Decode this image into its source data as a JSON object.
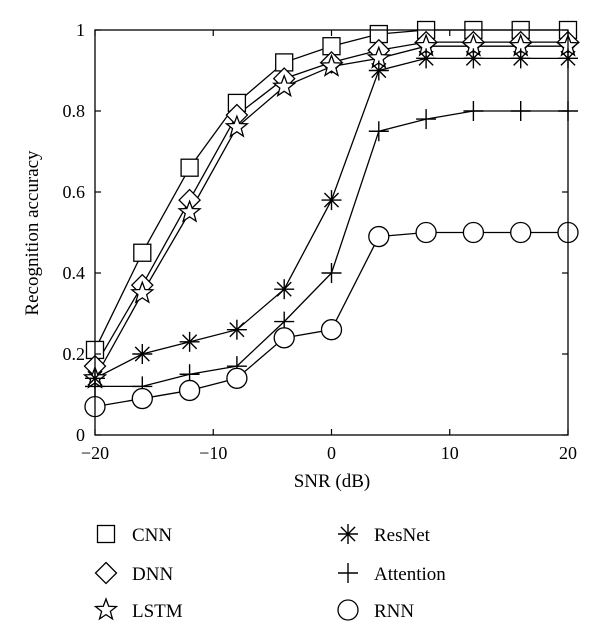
{
  "chart_data": {
    "type": "line",
    "title": "",
    "xlabel": "SNR (dB)",
    "ylabel": "Recognition accuracy",
    "xlim": [
      -20,
      20
    ],
    "ylim": [
      0,
      1
    ],
    "x_ticks": [
      -20,
      -10,
      0,
      10,
      20
    ],
    "x_tick_labels": [
      "−20",
      "−10",
      "0",
      "10",
      "20"
    ],
    "y_ticks": [
      0,
      0.2,
      0.4,
      0.6,
      0.8,
      1
    ],
    "y_tick_labels": [
      "0",
      "0.2",
      "0.4",
      "0.6",
      "0.8",
      "1"
    ],
    "grid": false,
    "legend_position": "below",
    "x": [
      -20,
      -16,
      -12,
      -8,
      -4,
      0,
      4,
      8,
      12,
      16,
      20
    ],
    "series": [
      {
        "name": "CNN",
        "marker": "square",
        "values": [
          0.21,
          0.45,
          0.66,
          0.82,
          0.92,
          0.96,
          0.99,
          1.0,
          1.0,
          1.0,
          1.0
        ]
      },
      {
        "name": "DNN",
        "marker": "diamond",
        "values": [
          0.17,
          0.37,
          0.58,
          0.79,
          0.88,
          0.92,
          0.95,
          0.97,
          0.97,
          0.97,
          0.97
        ]
      },
      {
        "name": "LSTM",
        "marker": "star",
        "values": [
          0.14,
          0.35,
          0.55,
          0.76,
          0.86,
          0.91,
          0.93,
          0.96,
          0.96,
          0.96,
          0.96
        ]
      },
      {
        "name": "ResNet",
        "marker": "asterisk",
        "values": [
          0.14,
          0.2,
          0.23,
          0.26,
          0.36,
          0.58,
          0.9,
          0.93,
          0.93,
          0.93,
          0.93
        ]
      },
      {
        "name": "Attention",
        "marker": "plus",
        "values": [
          0.12,
          0.12,
          0.15,
          0.17,
          0.28,
          0.4,
          0.75,
          0.78,
          0.8,
          0.8,
          0.8
        ]
      },
      {
        "name": "RNN",
        "marker": "circle",
        "values": [
          0.07,
          0.09,
          0.11,
          0.14,
          0.24,
          0.26,
          0.49,
          0.5,
          0.5,
          0.5,
          0.5
        ]
      }
    ]
  }
}
